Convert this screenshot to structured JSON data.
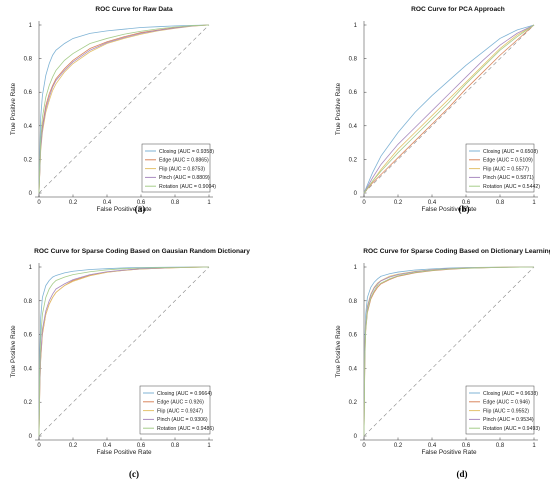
{
  "chart_data": [
    {
      "type": "line",
      "title": "ROC Curve for Raw Data",
      "xlabel": "False Positive Rate",
      "ylabel": "True Positive Rate",
      "xlim": [
        0,
        1
      ],
      "ylim": [
        0,
        1
      ],
      "xticks": [
        "0",
        "0.2",
        "0.4",
        "0.6",
        "0.8",
        "1"
      ],
      "yticks": [
        "0",
        "0.2",
        "0.4",
        "0.6",
        "0.8",
        "1"
      ],
      "grid": false,
      "legend_position": "bottom-right",
      "caption": "(a)",
      "series": [
        {
          "name": "Closing (AUC = 0.9358)",
          "color": "#7fb3d5",
          "x": [
            0,
            0.01,
            0.02,
            0.04,
            0.06,
            0.08,
            0.1,
            0.15,
            0.2,
            0.3,
            0.4,
            0.5,
            0.6,
            0.7,
            0.8,
            0.9,
            1
          ],
          "y": [
            0,
            0.45,
            0.58,
            0.7,
            0.77,
            0.82,
            0.85,
            0.89,
            0.92,
            0.95,
            0.965,
            0.975,
            0.985,
            0.99,
            0.995,
            0.998,
            1
          ]
        },
        {
          "name": "Edge (AUC = 0.8865)",
          "color": "#d9865e",
          "x": [
            0,
            0.01,
            0.02,
            0.04,
            0.06,
            0.08,
            0.1,
            0.15,
            0.2,
            0.3,
            0.4,
            0.5,
            0.6,
            0.7,
            0.8,
            0.9,
            1
          ],
          "y": [
            0,
            0.28,
            0.4,
            0.52,
            0.59,
            0.64,
            0.68,
            0.74,
            0.79,
            0.86,
            0.9,
            0.93,
            0.955,
            0.97,
            0.985,
            0.995,
            1
          ]
        },
        {
          "name": "Flip (AUC = 0.8753)",
          "color": "#e3c26c",
          "x": [
            0,
            0.01,
            0.02,
            0.04,
            0.06,
            0.08,
            0.1,
            0.15,
            0.2,
            0.3,
            0.4,
            0.5,
            0.6,
            0.7,
            0.8,
            0.9,
            1
          ],
          "y": [
            0,
            0.25,
            0.36,
            0.48,
            0.55,
            0.61,
            0.65,
            0.72,
            0.77,
            0.84,
            0.89,
            0.92,
            0.945,
            0.965,
            0.98,
            0.993,
            1
          ]
        },
        {
          "name": "Pinch (AUC = 0.8809)",
          "color": "#a98bbf",
          "x": [
            0,
            0.01,
            0.02,
            0.04,
            0.06,
            0.08,
            0.1,
            0.15,
            0.2,
            0.3,
            0.4,
            0.5,
            0.6,
            0.7,
            0.8,
            0.9,
            1
          ],
          "y": [
            0,
            0.27,
            0.38,
            0.5,
            0.57,
            0.63,
            0.67,
            0.73,
            0.78,
            0.85,
            0.895,
            0.925,
            0.95,
            0.968,
            0.982,
            0.994,
            1
          ]
        },
        {
          "name": "Rotation (AUC = 0.9004)",
          "color": "#a6cc8a",
          "x": [
            0,
            0.01,
            0.02,
            0.04,
            0.06,
            0.08,
            0.1,
            0.15,
            0.2,
            0.3,
            0.4,
            0.5,
            0.6,
            0.7,
            0.8,
            0.9,
            1
          ],
          "y": [
            0,
            0.32,
            0.45,
            0.57,
            0.64,
            0.69,
            0.73,
            0.79,
            0.83,
            0.89,
            0.92,
            0.945,
            0.963,
            0.977,
            0.988,
            0.996,
            1
          ]
        }
      ]
    },
    {
      "type": "line",
      "title": "ROC Curve for PCA Approach",
      "xlabel": "False Positive Rate",
      "ylabel": "True Positive Rate",
      "xlim": [
        0,
        1
      ],
      "ylim": [
        0,
        1
      ],
      "xticks": [
        "0",
        "0.2",
        "0.4",
        "0.6",
        "0.8",
        "1"
      ],
      "yticks": [
        "0",
        "0.2",
        "0.4",
        "0.6",
        "0.8",
        "1"
      ],
      "grid": false,
      "legend_position": "bottom-right",
      "caption": "(b)",
      "series": [
        {
          "name": "Closing (AUC = 0.6508)",
          "color": "#7fb3d5",
          "x": [
            0,
            0.05,
            0.1,
            0.2,
            0.3,
            0.4,
            0.5,
            0.6,
            0.7,
            0.8,
            0.9,
            1
          ],
          "y": [
            0,
            0.12,
            0.22,
            0.36,
            0.48,
            0.58,
            0.67,
            0.76,
            0.84,
            0.92,
            0.97,
            1
          ]
        },
        {
          "name": "Edge (AUC = 0.5109)",
          "color": "#d9865e",
          "x": [
            0,
            0.05,
            0.1,
            0.2,
            0.3,
            0.4,
            0.5,
            0.6,
            0.7,
            0.8,
            0.9,
            1
          ],
          "y": [
            0,
            0.06,
            0.11,
            0.21,
            0.31,
            0.41,
            0.51,
            0.62,
            0.72,
            0.82,
            0.91,
            1
          ]
        },
        {
          "name": "Flip (AUC = 0.5577)",
          "color": "#e3c26c",
          "x": [
            0,
            0.05,
            0.1,
            0.2,
            0.3,
            0.4,
            0.5,
            0.6,
            0.7,
            0.8,
            0.9,
            1
          ],
          "y": [
            0,
            0.07,
            0.14,
            0.26,
            0.36,
            0.46,
            0.56,
            0.66,
            0.76,
            0.86,
            0.94,
            1
          ]
        },
        {
          "name": "Pinch (AUC = 0.5871)",
          "color": "#a98bbf",
          "x": [
            0,
            0.05,
            0.1,
            0.2,
            0.3,
            0.4,
            0.5,
            0.6,
            0.7,
            0.8,
            0.9,
            1
          ],
          "y": [
            0,
            0.09,
            0.17,
            0.29,
            0.39,
            0.49,
            0.59,
            0.69,
            0.79,
            0.88,
            0.95,
            1
          ]
        },
        {
          "name": "Rotation (AUC = 0.5442)",
          "color": "#a6cc8a",
          "x": [
            0,
            0.05,
            0.1,
            0.2,
            0.3,
            0.4,
            0.5,
            0.6,
            0.7,
            0.8,
            0.9,
            1
          ],
          "y": [
            0,
            0.07,
            0.13,
            0.24,
            0.34,
            0.44,
            0.54,
            0.65,
            0.75,
            0.85,
            0.93,
            1
          ]
        }
      ]
    },
    {
      "type": "line",
      "title": "ROC Curve for Sparse Coding Based on Gausian Random Dictionary",
      "xlabel": "False Positive Rate",
      "ylabel": "True Positive Rate",
      "xlim": [
        0,
        1
      ],
      "ylim": [
        0,
        1
      ],
      "xticks": [
        "0",
        "0.2",
        "0.4",
        "0.6",
        "0.8",
        "1"
      ],
      "yticks": [
        "0",
        "0.2",
        "0.4",
        "0.6",
        "0.8",
        "1"
      ],
      "grid": false,
      "legend_position": "bottom-right",
      "caption": "(c)",
      "series": [
        {
          "name": "Closing (AUC = 0.9664)",
          "color": "#7fb3d5",
          "x": [
            0,
            0.005,
            0.01,
            0.02,
            0.04,
            0.06,
            0.08,
            0.1,
            0.15,
            0.2,
            0.3,
            0.4,
            0.5,
            0.6,
            0.8,
            1
          ],
          "y": [
            0,
            0.5,
            0.7,
            0.82,
            0.89,
            0.92,
            0.94,
            0.95,
            0.965,
            0.975,
            0.985,
            0.99,
            0.995,
            0.997,
            0.999,
            1
          ]
        },
        {
          "name": "Edge (AUC = 0.926)",
          "color": "#d9865e",
          "x": [
            0,
            0.005,
            0.01,
            0.02,
            0.04,
            0.06,
            0.08,
            0.1,
            0.15,
            0.2,
            0.3,
            0.4,
            0.5,
            0.6,
            0.8,
            1
          ],
          "y": [
            0,
            0.3,
            0.45,
            0.6,
            0.72,
            0.78,
            0.82,
            0.85,
            0.89,
            0.92,
            0.95,
            0.97,
            0.98,
            0.988,
            0.996,
            1
          ]
        },
        {
          "name": "Flip (AUC = 0.9247)",
          "color": "#e3c26c",
          "x": [
            0,
            0.005,
            0.01,
            0.02,
            0.04,
            0.06,
            0.08,
            0.1,
            0.15,
            0.2,
            0.3,
            0.4,
            0.5,
            0.6,
            0.8,
            1
          ],
          "y": [
            0,
            0.3,
            0.46,
            0.61,
            0.72,
            0.78,
            0.82,
            0.85,
            0.89,
            0.915,
            0.948,
            0.968,
            0.98,
            0.988,
            0.996,
            1
          ]
        },
        {
          "name": "Pinch (AUC = 0.9306)",
          "color": "#a98bbf",
          "x": [
            0,
            0.005,
            0.01,
            0.02,
            0.04,
            0.06,
            0.08,
            0.1,
            0.15,
            0.2,
            0.3,
            0.4,
            0.5,
            0.6,
            0.8,
            1
          ],
          "y": [
            0,
            0.33,
            0.48,
            0.63,
            0.74,
            0.8,
            0.84,
            0.87,
            0.9,
            0.925,
            0.955,
            0.972,
            0.982,
            0.99,
            0.997,
            1
          ]
        },
        {
          "name": "Rotation (AUC = 0.9486)",
          "color": "#a6cc8a",
          "x": [
            0,
            0.005,
            0.01,
            0.02,
            0.04,
            0.06,
            0.08,
            0.1,
            0.15,
            0.2,
            0.3,
            0.4,
            0.5,
            0.6,
            0.8,
            1
          ],
          "y": [
            0,
            0.4,
            0.58,
            0.72,
            0.82,
            0.87,
            0.9,
            0.92,
            0.94,
            0.955,
            0.972,
            0.983,
            0.99,
            0.994,
            0.998,
            1
          ]
        }
      ]
    },
    {
      "type": "line",
      "title": "ROC Curve for Sparse Coding Based on Dictionary Learning",
      "xlabel": "False Positive Rate",
      "ylabel": "True Positive Rate",
      "xlim": [
        0,
        1
      ],
      "ylim": [
        0,
        1
      ],
      "xticks": [
        "0",
        "0.2",
        "0.4",
        "0.6",
        "0.8",
        "1"
      ],
      "yticks": [
        "0",
        "0.2",
        "0.4",
        "0.6",
        "0.8",
        "1"
      ],
      "grid": false,
      "legend_position": "bottom-right",
      "caption": "(d)",
      "series": [
        {
          "name": "Closing (AUC = 0.9638)",
          "color": "#7fb3d5",
          "x": [
            0,
            0.005,
            0.01,
            0.02,
            0.04,
            0.06,
            0.08,
            0.1,
            0.15,
            0.2,
            0.3,
            0.4,
            0.5,
            0.6,
            0.8,
            1
          ],
          "y": [
            0,
            0.55,
            0.72,
            0.82,
            0.88,
            0.91,
            0.93,
            0.945,
            0.96,
            0.97,
            0.982,
            0.989,
            0.994,
            0.997,
            0.999,
            1
          ]
        },
        {
          "name": "Edge (AUC = 0.946)",
          "color": "#d9865e",
          "x": [
            0,
            0.005,
            0.01,
            0.02,
            0.04,
            0.06,
            0.08,
            0.1,
            0.15,
            0.2,
            0.3,
            0.4,
            0.5,
            0.6,
            0.8,
            1
          ],
          "y": [
            0,
            0.45,
            0.62,
            0.73,
            0.81,
            0.85,
            0.88,
            0.9,
            0.925,
            0.945,
            0.965,
            0.978,
            0.986,
            0.992,
            0.998,
            1
          ]
        },
        {
          "name": "Flip (AUC = 0.9552)",
          "color": "#e3c26c",
          "x": [
            0,
            0.005,
            0.01,
            0.02,
            0.04,
            0.06,
            0.08,
            0.1,
            0.15,
            0.2,
            0.3,
            0.4,
            0.5,
            0.6,
            0.8,
            1
          ],
          "y": [
            0,
            0.5,
            0.66,
            0.77,
            0.84,
            0.88,
            0.905,
            0.92,
            0.945,
            0.958,
            0.974,
            0.984,
            0.99,
            0.995,
            0.999,
            1
          ]
        },
        {
          "name": "Pinch (AUC = 0.9534)",
          "color": "#a98bbf",
          "x": [
            0,
            0.005,
            0.01,
            0.02,
            0.04,
            0.06,
            0.08,
            0.1,
            0.15,
            0.2,
            0.3,
            0.4,
            0.5,
            0.6,
            0.8,
            1
          ],
          "y": [
            0,
            0.5,
            0.65,
            0.76,
            0.835,
            0.875,
            0.9,
            0.918,
            0.94,
            0.955,
            0.972,
            0.983,
            0.99,
            0.994,
            0.998,
            1
          ]
        },
        {
          "name": "Rotation (AUC = 0.9493)",
          "color": "#a6cc8a",
          "x": [
            0,
            0.005,
            0.01,
            0.02,
            0.04,
            0.06,
            0.08,
            0.1,
            0.15,
            0.2,
            0.3,
            0.4,
            0.5,
            0.6,
            0.8,
            1
          ],
          "y": [
            0,
            0.47,
            0.63,
            0.74,
            0.82,
            0.86,
            0.89,
            0.905,
            0.93,
            0.948,
            0.968,
            0.98,
            0.988,
            0.993,
            0.998,
            1
          ]
        }
      ]
    }
  ]
}
